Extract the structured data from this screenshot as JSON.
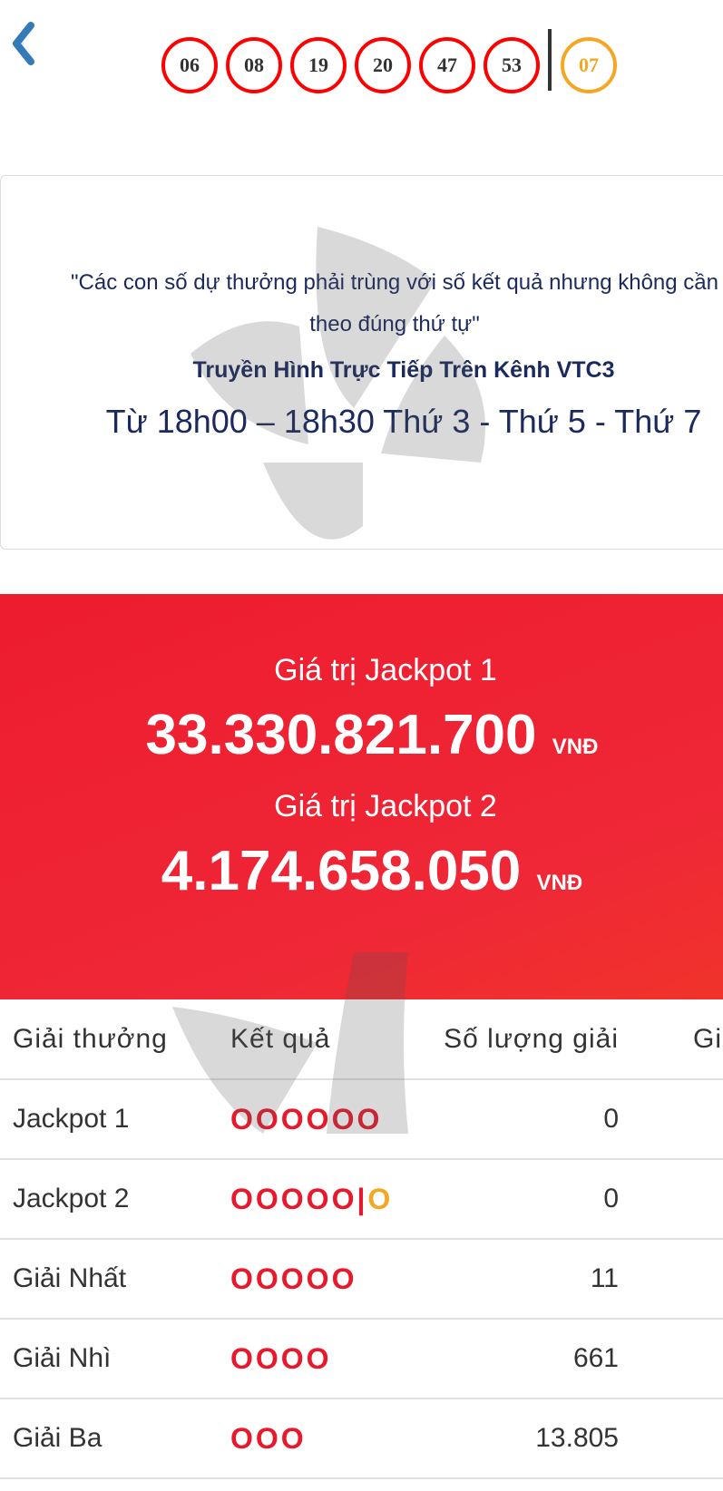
{
  "header": {
    "back_icon": "chevron-left-icon",
    "main_numbers": [
      "06",
      "08",
      "19",
      "20",
      "47",
      "53"
    ],
    "bonus_number": "07",
    "colors": {
      "main": "#ff0000",
      "bonus": "#f5a623",
      "back": "#337ab7"
    }
  },
  "info": {
    "rule": "\"Các con số dự thưởng phải trùng với số kết quả nhưng không cần theo đúng thứ tự\"",
    "broadcast": "Truyền Hình Trực Tiếp Trên Kênh VTC3",
    "schedule": "Từ 18h00 – 18h30 Thứ 3 - Thứ 5 - Thứ 7"
  },
  "jackpot": {
    "label1": "Giá trị Jackpot 1",
    "value1": "33.330.821.700",
    "label2": "Giá trị Jackpot 2",
    "value2": "4.174.658.050",
    "currency": "VNĐ",
    "color": "#ed1c2e"
  },
  "table": {
    "headers": [
      "Giải thưởng",
      "Kết quả",
      "Số lượng giải",
      "Gi"
    ],
    "rows": [
      {
        "prize": "Jackpot 1",
        "result": "OOOOOO",
        "bonus": "",
        "count": "0"
      },
      {
        "prize": "Jackpot 2",
        "result": "OOOOO",
        "bonus": "O",
        "count": "0"
      },
      {
        "prize": "Giải Nhất",
        "result": "OOOOO",
        "bonus": "",
        "count": "11"
      },
      {
        "prize": "Giải Nhì",
        "result": "OOOO",
        "bonus": "",
        "count": "661"
      },
      {
        "prize": "Giải Ba",
        "result": "OOO",
        "bonus": "",
        "count": "13.805"
      }
    ]
  }
}
